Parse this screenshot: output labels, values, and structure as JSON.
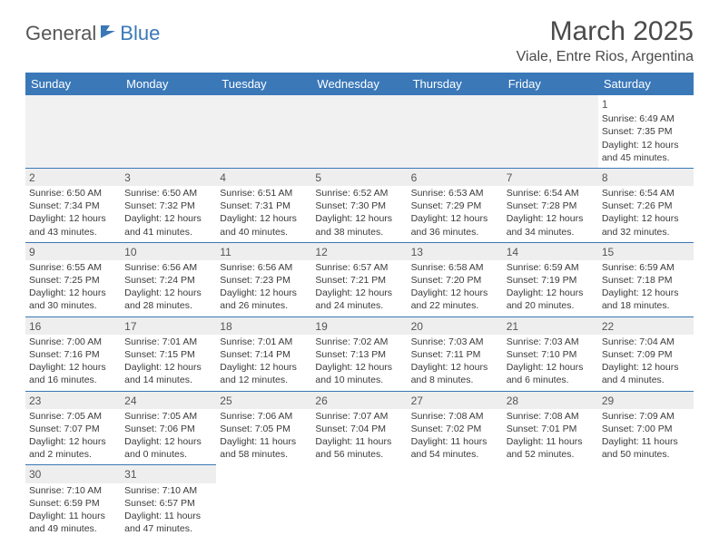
{
  "logo": {
    "general": "General",
    "blue": "Blue"
  },
  "title": "March 2025",
  "location": "Viale, Entre Rios, Argentina",
  "colors": {
    "header_bg": "#3a78b8",
    "header_text": "#ffffff",
    "border": "#3a78b8",
    "shade": "#eeeeee"
  },
  "weekdays": [
    "Sunday",
    "Monday",
    "Tuesday",
    "Wednesday",
    "Thursday",
    "Friday",
    "Saturday"
  ],
  "days": {
    "1": {
      "sunrise": "6:49 AM",
      "sunset": "7:35 PM",
      "daylight": "12 hours and 45 minutes."
    },
    "2": {
      "sunrise": "6:50 AM",
      "sunset": "7:34 PM",
      "daylight": "12 hours and 43 minutes."
    },
    "3": {
      "sunrise": "6:50 AM",
      "sunset": "7:32 PM",
      "daylight": "12 hours and 41 minutes."
    },
    "4": {
      "sunrise": "6:51 AM",
      "sunset": "7:31 PM",
      "daylight": "12 hours and 40 minutes."
    },
    "5": {
      "sunrise": "6:52 AM",
      "sunset": "7:30 PM",
      "daylight": "12 hours and 38 minutes."
    },
    "6": {
      "sunrise": "6:53 AM",
      "sunset": "7:29 PM",
      "daylight": "12 hours and 36 minutes."
    },
    "7": {
      "sunrise": "6:54 AM",
      "sunset": "7:28 PM",
      "daylight": "12 hours and 34 minutes."
    },
    "8": {
      "sunrise": "6:54 AM",
      "sunset": "7:26 PM",
      "daylight": "12 hours and 32 minutes."
    },
    "9": {
      "sunrise": "6:55 AM",
      "sunset": "7:25 PM",
      "daylight": "12 hours and 30 minutes."
    },
    "10": {
      "sunrise": "6:56 AM",
      "sunset": "7:24 PM",
      "daylight": "12 hours and 28 minutes."
    },
    "11": {
      "sunrise": "6:56 AM",
      "sunset": "7:23 PM",
      "daylight": "12 hours and 26 minutes."
    },
    "12": {
      "sunrise": "6:57 AM",
      "sunset": "7:21 PM",
      "daylight": "12 hours and 24 minutes."
    },
    "13": {
      "sunrise": "6:58 AM",
      "sunset": "7:20 PM",
      "daylight": "12 hours and 22 minutes."
    },
    "14": {
      "sunrise": "6:59 AM",
      "sunset": "7:19 PM",
      "daylight": "12 hours and 20 minutes."
    },
    "15": {
      "sunrise": "6:59 AM",
      "sunset": "7:18 PM",
      "daylight": "12 hours and 18 minutes."
    },
    "16": {
      "sunrise": "7:00 AM",
      "sunset": "7:16 PM",
      "daylight": "12 hours and 16 minutes."
    },
    "17": {
      "sunrise": "7:01 AM",
      "sunset": "7:15 PM",
      "daylight": "12 hours and 14 minutes."
    },
    "18": {
      "sunrise": "7:01 AM",
      "sunset": "7:14 PM",
      "daylight": "12 hours and 12 minutes."
    },
    "19": {
      "sunrise": "7:02 AM",
      "sunset": "7:13 PM",
      "daylight": "12 hours and 10 minutes."
    },
    "20": {
      "sunrise": "7:03 AM",
      "sunset": "7:11 PM",
      "daylight": "12 hours and 8 minutes."
    },
    "21": {
      "sunrise": "7:03 AM",
      "sunset": "7:10 PM",
      "daylight": "12 hours and 6 minutes."
    },
    "22": {
      "sunrise": "7:04 AM",
      "sunset": "7:09 PM",
      "daylight": "12 hours and 4 minutes."
    },
    "23": {
      "sunrise": "7:05 AM",
      "sunset": "7:07 PM",
      "daylight": "12 hours and 2 minutes."
    },
    "24": {
      "sunrise": "7:05 AM",
      "sunset": "7:06 PM",
      "daylight": "12 hours and 0 minutes."
    },
    "25": {
      "sunrise": "7:06 AM",
      "sunset": "7:05 PM",
      "daylight": "11 hours and 58 minutes."
    },
    "26": {
      "sunrise": "7:07 AM",
      "sunset": "7:04 PM",
      "daylight": "11 hours and 56 minutes."
    },
    "27": {
      "sunrise": "7:08 AM",
      "sunset": "7:02 PM",
      "daylight": "11 hours and 54 minutes."
    },
    "28": {
      "sunrise": "7:08 AM",
      "sunset": "7:01 PM",
      "daylight": "11 hours and 52 minutes."
    },
    "29": {
      "sunrise": "7:09 AM",
      "sunset": "7:00 PM",
      "daylight": "11 hours and 50 minutes."
    },
    "30": {
      "sunrise": "7:10 AM",
      "sunset": "6:59 PM",
      "daylight": "11 hours and 49 minutes."
    },
    "31": {
      "sunrise": "7:10 AM",
      "sunset": "6:57 PM",
      "daylight": "11 hours and 47 minutes."
    }
  },
  "labels": {
    "sunrise": "Sunrise:",
    "sunset": "Sunset:",
    "daylight": "Daylight:"
  },
  "layout": [
    [
      null,
      null,
      null,
      null,
      null,
      null,
      1
    ],
    [
      2,
      3,
      4,
      5,
      6,
      7,
      8
    ],
    [
      9,
      10,
      11,
      12,
      13,
      14,
      15
    ],
    [
      16,
      17,
      18,
      19,
      20,
      21,
      22
    ],
    [
      23,
      24,
      25,
      26,
      27,
      28,
      29
    ],
    [
      30,
      31,
      null,
      null,
      null,
      null,
      null
    ]
  ]
}
